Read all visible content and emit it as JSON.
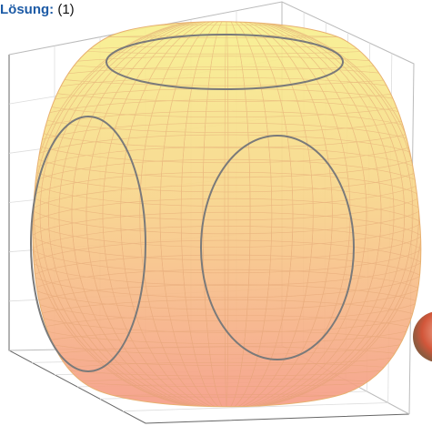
{
  "caption": {
    "label": "Lösung:",
    "number": "(1)"
  }
}
